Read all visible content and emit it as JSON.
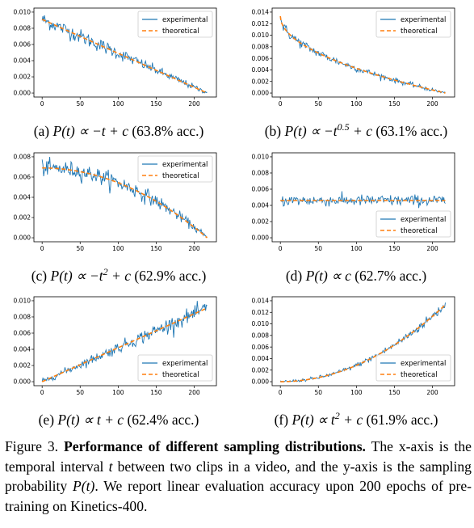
{
  "colors": {
    "experimental": "#1f77b4",
    "theoretical": "#ff7f0e"
  },
  "legend": {
    "experimental": "experimental",
    "theoretical": "theoretical"
  },
  "chart_data": [
    {
      "id": "a",
      "type": "line",
      "formula": "linear_decreasing",
      "xlim": [
        0,
        220
      ],
      "ylim": [
        0,
        0.01
      ],
      "xticks": [
        0,
        50,
        100,
        150,
        200
      ],
      "yticks": [
        "0.000",
        "0.002",
        "0.004",
        "0.006",
        "0.008",
        "0.010"
      ],
      "theory": {
        "start": 0.0091,
        "end": 0.0
      },
      "noise": 0.00045,
      "legend_position": "top-right",
      "caption": {
        "label": "(a)",
        "math": "P(t) ∝ −t + c",
        "acc": "(63.8% acc.)"
      }
    },
    {
      "id": "b",
      "type": "line",
      "formula": "sqrt_decreasing",
      "xlim": [
        0,
        220
      ],
      "ylim": [
        0,
        0.014
      ],
      "xticks": [
        0,
        50,
        100,
        150,
        200
      ],
      "yticks": [
        "0.000",
        "0.002",
        "0.004",
        "0.006",
        "0.008",
        "0.010",
        "0.012",
        "0.014"
      ],
      "theory": {
        "start": 0.0133,
        "end": 0.0
      },
      "noise": 0.00045,
      "legend_position": "top-right",
      "caption": {
        "label": "(b)",
        "math": "P(t) ∝ −t",
        "sup": "0.5",
        "math2": " + c",
        "acc": "(63.1% acc.)"
      }
    },
    {
      "id": "c",
      "type": "line",
      "formula": "quadratic_decreasing",
      "xlim": [
        0,
        220
      ],
      "ylim": [
        0,
        0.008
      ],
      "xticks": [
        0,
        50,
        100,
        150,
        200
      ],
      "yticks": [
        "0.000",
        "0.002",
        "0.004",
        "0.006",
        "0.008"
      ],
      "theory": {
        "start": 0.0069,
        "end": 0.0
      },
      "noise": 0.0004,
      "legend_position": "top-right",
      "caption": {
        "label": "(c)",
        "math": "P(t) ∝ −t",
        "sup": "2",
        "math2": " + c",
        "acc": "(62.9% acc.)"
      }
    },
    {
      "id": "d",
      "type": "line",
      "formula": "constant",
      "xlim": [
        0,
        220
      ],
      "ylim": [
        0,
        0.01
      ],
      "xticks": [
        0,
        50,
        100,
        150,
        200
      ],
      "yticks": [
        "0.000",
        "0.002",
        "0.004",
        "0.006",
        "0.008",
        "0.010"
      ],
      "theory": {
        "start": 0.0046,
        "end": 0.0046
      },
      "noise": 0.00035,
      "legend_position": "bottom-right",
      "caption": {
        "label": "(d)",
        "math": "P(t) ∝ c",
        "acc": "(62.7% acc.)"
      }
    },
    {
      "id": "e",
      "type": "line",
      "formula": "linear_increasing",
      "xlim": [
        0,
        220
      ],
      "ylim": [
        0,
        0.01
      ],
      "xticks": [
        0,
        50,
        100,
        150,
        200
      ],
      "yticks": [
        "0.000",
        "0.002",
        "0.004",
        "0.006",
        "0.008",
        "0.010"
      ],
      "theory": {
        "start": 0.0,
        "end": 0.0091
      },
      "noise": 0.00045,
      "legend_position": "bottom-right",
      "caption": {
        "label": "(e)",
        "math": "P(t) ∝ t + c",
        "acc": "(62.4% acc.)"
      }
    },
    {
      "id": "f",
      "type": "line",
      "formula": "quadratic_increasing",
      "xlim": [
        0,
        220
      ],
      "ylim": [
        0,
        0.014
      ],
      "xticks": [
        0,
        50,
        100,
        150,
        200
      ],
      "yticks": [
        "0.000",
        "0.002",
        "0.004",
        "0.006",
        "0.008",
        "0.010",
        "0.012",
        "0.014"
      ],
      "theory": {
        "start": 0.0,
        "end": 0.0133
      },
      "noise": 0.0004,
      "legend_position": "bottom-right",
      "caption": {
        "label": "(f)",
        "math": "P(t) ∝ t",
        "sup": "2",
        "math2": " + c",
        "acc": "(61.9% acc.)"
      }
    }
  ],
  "figure_caption": {
    "label": "Figure 3.",
    "title": "Performance of different sampling distributions.",
    "text1": "The x-axis is the temporal interval",
    "t": "t",
    "text2": "between two clips in a video, and the y-axis is the sampling probability",
    "pt": "P(t)",
    "text3": ". We report linear evaluation accuracy upon 200 epochs of pre-training on Kinetics-400."
  }
}
